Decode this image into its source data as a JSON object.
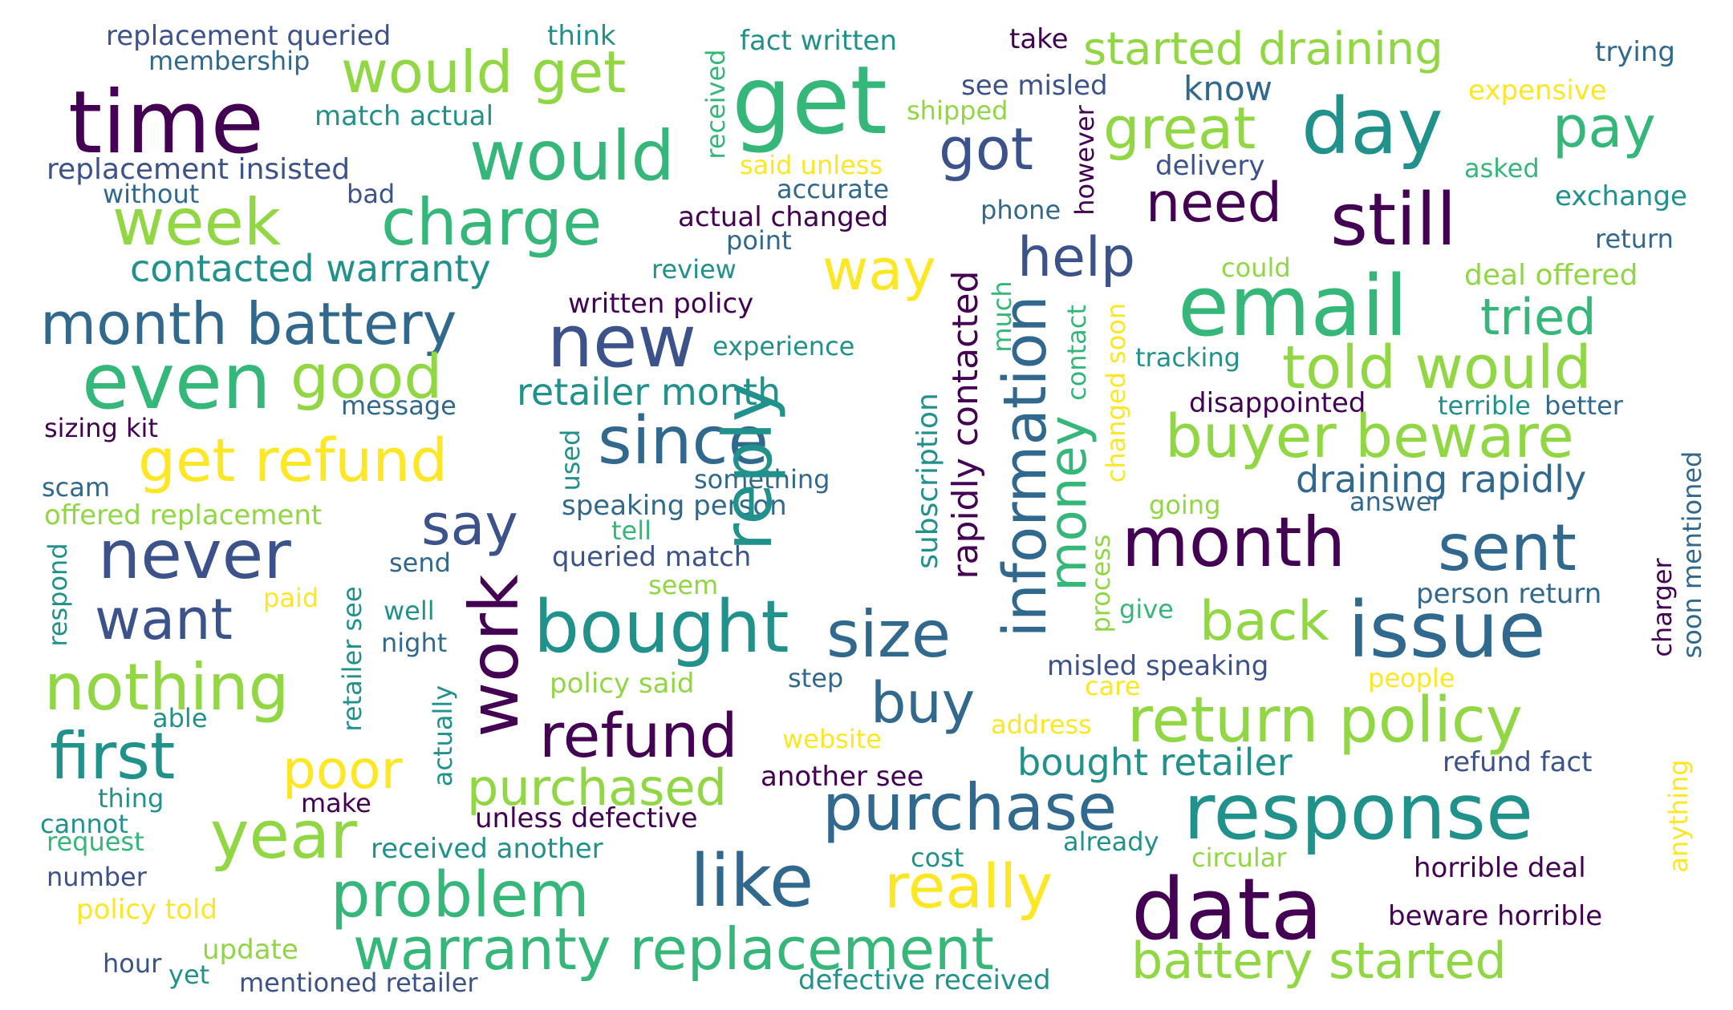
{
  "palette": {
    "dark_purple": "#440154",
    "indigo": "#3b528b",
    "blue": "#31688e",
    "teal": "#21918c",
    "green": "#35b779",
    "light_green": "#90d743",
    "yellow": "#fde725",
    "background": "#ffffff"
  },
  "words": {
    "time": "time",
    "get": "get",
    "would_get": "would get",
    "would": "would",
    "week": "week",
    "charge": "charge",
    "day": "day",
    "still": "still",
    "email": "email",
    "started_draining": "started draining",
    "great": "great",
    "pay": "pay",
    "got": "got",
    "need": "need",
    "help": "help",
    "way": "way",
    "new": "new",
    "month_battery": "month battery",
    "even": "even",
    "good": "good",
    "get_refund": "get refund",
    "since": "since",
    "reply": "reply",
    "information": "information",
    "money": "money",
    "told_would": "told would",
    "buyer_beware": "buyer beware",
    "tried": "tried",
    "month": "month",
    "sent": "sent",
    "never": "never",
    "say": "say",
    "want": "want",
    "work": "work",
    "bought": "bought",
    "size": "size",
    "issue": "issue",
    "back": "back",
    "nothing": "nothing",
    "first": "first",
    "buy": "buy",
    "refund": "refund",
    "return_policy": "return policy",
    "poor": "poor",
    "purchased": "purchased",
    "purchase": "purchase",
    "response": "response",
    "year": "year",
    "problem": "problem",
    "like": "like",
    "really": "really",
    "data": "data",
    "warranty_replacement": "warranty replacement",
    "battery_started": "battery started",
    "contacted_warranty": "contacted warranty",
    "retailer_month": "retailer month",
    "draining_rapidly": "draining rapidly",
    "bought_retailer": "bought retailer",
    "replacement_queried": "replacement queried",
    "membership": "membership",
    "think": "think",
    "fact_written": "fact written",
    "take": "take",
    "trying": "trying",
    "see_misled": "see misled",
    "know": "know",
    "expensive": "expensive",
    "shipped": "shipped",
    "match_actual": "match actual",
    "replacement_insisted": "replacement insisted",
    "without": "without",
    "bad": "bad",
    "said_unless": "said unless",
    "accurate": "accurate",
    "actual_changed": "actual changed",
    "point": "point",
    "phone": "phone",
    "delivery": "delivery",
    "asked": "asked",
    "exchange": "exchange",
    "return": "return",
    "review": "review",
    "could": "could",
    "deal_offered": "deal offered",
    "written_policy": "written policy",
    "experience": "experience",
    "tracking": "tracking",
    "message": "message",
    "sizing_kit": "sizing kit",
    "disappointed": "disappointed",
    "terrible": "terrible",
    "better": "better",
    "scam": "scam",
    "something": "something",
    "offered_replacement": "offered replacement",
    "speaking_person": "speaking person",
    "going": "going",
    "answer": "answer",
    "tell": "tell",
    "queried_match": "queried match",
    "send": "send",
    "seem": "seem",
    "person_return": "person return",
    "paid": "paid",
    "well": "well",
    "give": "give",
    "night": "night",
    "misled_speaking": "misled speaking",
    "policy_said": "policy said",
    "step": "step",
    "care": "care",
    "people": "people",
    "able": "able",
    "address": "address",
    "website": "website",
    "another_see": "another see",
    "refund_fact": "refund fact",
    "thing": "thing",
    "make": "make",
    "cannot": "cannot",
    "unless_defective": "unless defective",
    "request": "request",
    "received_another": "received another",
    "already": "already",
    "cost": "cost",
    "circular": "circular",
    "horrible_deal": "horrible deal",
    "number": "number",
    "policy_told": "policy told",
    "beware_horrible": "beware horrible",
    "hour": "hour",
    "update": "update",
    "yet": "yet",
    "mentioned_retailer": "mentioned retailer",
    "defective_received": "defective received",
    "received": "received",
    "however": "however",
    "rapidly_contacted": "rapidly contacted",
    "subscription": "subscription",
    "much": "much",
    "contact": "contact",
    "changed_soon": "changed soon",
    "process": "process",
    "used": "used",
    "respond": "respond",
    "retailer_see": "retailer see",
    "actually": "actually",
    "anything": "anything",
    "charger": "charger",
    "soon_mentioned": "soon mentioned"
  }
}
